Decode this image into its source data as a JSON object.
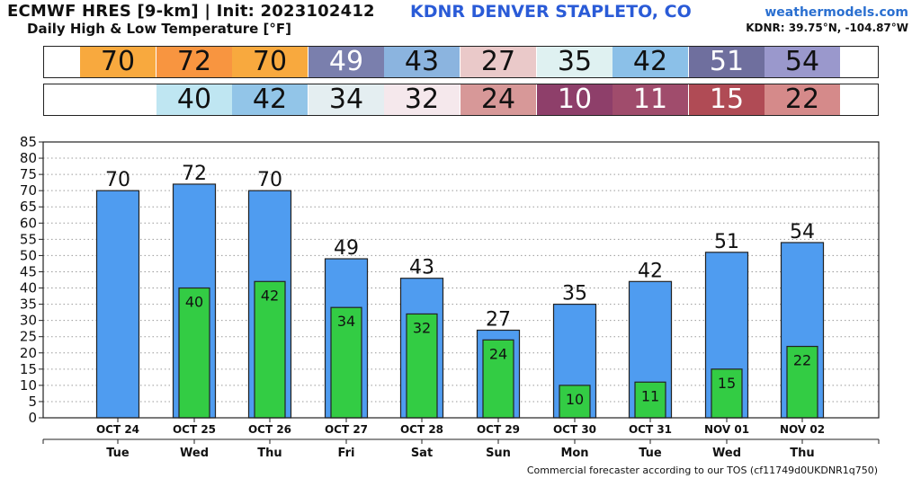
{
  "header": {
    "title": "ECMWF HRES [9-km] | Init: 2023102412",
    "subtitle": "Daily High & Low Temperature [°F]",
    "station": "KDNR DENVER STAPLETO, CO",
    "brand": "weathermodels.com",
    "coords": "KDNR: 39.75°N, -104.87°W"
  },
  "strips": {
    "high": [
      {
        "value": "70",
        "bg": "#f8a93e",
        "fg": "#111111"
      },
      {
        "value": "72",
        "bg": "#f89540",
        "fg": "#111111"
      },
      {
        "value": "70",
        "bg": "#f8a93e",
        "fg": "#111111"
      },
      {
        "value": "49",
        "bg": "#7a7fad",
        "fg": "#ffffff"
      },
      {
        "value": "43",
        "bg": "#8bb4df",
        "fg": "#111111"
      },
      {
        "value": "27",
        "bg": "#eac9c9",
        "fg": "#111111"
      },
      {
        "value": "35",
        "bg": "#dff1f1",
        "fg": "#111111"
      },
      {
        "value": "42",
        "bg": "#8bc0e8",
        "fg": "#111111"
      },
      {
        "value": "51",
        "bg": "#6f6f9e",
        "fg": "#ffffff"
      },
      {
        "value": "54",
        "bg": "#9a98cc",
        "fg": "#111111"
      }
    ],
    "low": [
      {
        "value": "",
        "bg": "#ffffff",
        "fg": "#111111"
      },
      {
        "value": "40",
        "bg": "#bfe6f2",
        "fg": "#111111"
      },
      {
        "value": "42",
        "bg": "#92c5e8",
        "fg": "#111111"
      },
      {
        "value": "34",
        "bg": "#e4eef1",
        "fg": "#111111"
      },
      {
        "value": "32",
        "bg": "#f5e8ec",
        "fg": "#111111"
      },
      {
        "value": "24",
        "bg": "#d79898",
        "fg": "#111111"
      },
      {
        "value": "10",
        "bg": "#8e3f6a",
        "fg": "#ffffff"
      },
      {
        "value": "11",
        "bg": "#a04c6c",
        "fg": "#ffffff"
      },
      {
        "value": "15",
        "bg": "#b04b55",
        "fg": "#ffffff"
      },
      {
        "value": "22",
        "bg": "#d58a8a",
        "fg": "#111111"
      }
    ]
  },
  "chart_data": {
    "type": "bar",
    "categories": [
      "OCT 24",
      "OCT 25",
      "OCT 26",
      "OCT 27",
      "OCT 28",
      "OCT 29",
      "OCT 30",
      "OCT 31",
      "NOV 01",
      "NOV 02"
    ],
    "days": [
      "Tue",
      "Wed",
      "Thu",
      "Fri",
      "Sat",
      "Sun",
      "Mon",
      "Tue",
      "Wed",
      "Thu"
    ],
    "series": [
      {
        "values": [
          70,
          72,
          70,
          49,
          43,
          27,
          35,
          42,
          51,
          54
        ],
        "color": "#4f9cf0"
      },
      {
        "values": [
          null,
          40,
          42,
          34,
          32,
          24,
          10,
          11,
          15,
          22
        ],
        "color": "#33cc44"
      }
    ],
    "ylim": [
      0,
      85
    ],
    "yticks": [
      "0",
      "5",
      "10",
      "15",
      "20",
      "25",
      "30",
      "35",
      "40",
      "45",
      "50",
      "55",
      "60",
      "65",
      "70",
      "75",
      "80",
      "85"
    ],
    "grid": true
  },
  "footer": "Commercial forecaster according to our TOS (cf11749d0UKDNR1q750)"
}
